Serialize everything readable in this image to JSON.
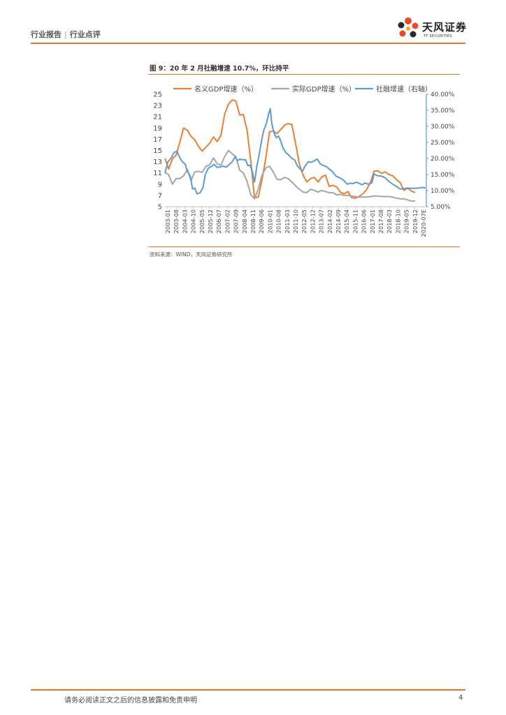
{
  "header": {
    "left_a": "行业报告",
    "sep": "|",
    "left_b": "行业点评",
    "logo_cn": "天风证券",
    "logo_en": "TF SECURITIES"
  },
  "figure": {
    "title": "图 9：20 年 2 月社融增速 10.7%，环比持平",
    "source": "资料来源：WIND，天风证券研究所"
  },
  "footer": {
    "disclaimer": "请务必阅读正文之后的信息披露和免责申明",
    "page": "4"
  },
  "colors": {
    "accent": "#e8742c",
    "nominal": "#ed7d31",
    "real": "#a5a5a5",
    "tsf": "#5b9bd5",
    "axis_right": "#5b9bd5"
  },
  "chart_data": {
    "type": "line",
    "x_tick_labels": [
      "2003-01",
      "2003-08",
      "2004-03",
      "2004-10",
      "2005-05",
      "2005-12",
      "2006-07",
      "2007-02",
      "2007-09",
      "2008-04",
      "2008-11",
      "2009-06",
      "2010-01",
      "2010-08",
      "2011-03",
      "2011-10",
      "2012-05",
      "2012-12",
      "2013-07",
      "2014-02",
      "2014-09",
      "2015-04",
      "2015-11",
      "2016-06",
      "2017-01",
      "2017-08",
      "2018-03",
      "2018-10",
      "2019-05",
      "2019-12",
      "2020-07E"
    ],
    "x_range": [
      2003.0,
      2020.5
    ],
    "y_left": {
      "range": [
        5,
        25
      ],
      "ticks": [
        "5",
        "7",
        "9",
        "11",
        "13",
        "15",
        "17",
        "19",
        "21",
        "23",
        "25"
      ]
    },
    "y_right": {
      "range": [
        5,
        40
      ],
      "ticks": [
        "5.00%",
        "10.00%",
        "15.00%",
        "20.00%",
        "25.00%",
        "30.00%",
        "35.00%",
        "40.00%"
      ]
    },
    "legend_position": "top",
    "series": [
      {
        "name": "名义GDP增速（%）",
        "axis": "left",
        "color": "#ed7d31",
        "points": [
          [
            2003.0,
            13.6
          ],
          [
            2003.25,
            11.7
          ],
          [
            2003.5,
            13.5
          ],
          [
            2003.75,
            14.2
          ],
          [
            2004.0,
            16.5
          ],
          [
            2004.25,
            19.0
          ],
          [
            2004.5,
            18.6
          ],
          [
            2004.75,
            17.5
          ],
          [
            2005.0,
            16.9
          ],
          [
            2005.25,
            15.7
          ],
          [
            2005.5,
            14.9
          ],
          [
            2005.75,
            15.6
          ],
          [
            2006.0,
            16.3
          ],
          [
            2006.25,
            17.4
          ],
          [
            2006.5,
            16.6
          ],
          [
            2006.75,
            17.7
          ],
          [
            2007.0,
            21.5
          ],
          [
            2007.25,
            23.2
          ],
          [
            2007.5,
            24.0
          ],
          [
            2007.75,
            23.8
          ],
          [
            2008.0,
            21.3
          ],
          [
            2008.25,
            21.4
          ],
          [
            2008.5,
            18.6
          ],
          [
            2008.75,
            13.0
          ],
          [
            2009.0,
            6.6
          ],
          [
            2009.25,
            6.7
          ],
          [
            2009.5,
            9.8
          ],
          [
            2009.75,
            13.6
          ],
          [
            2010.0,
            18.3
          ],
          [
            2010.25,
            18.5
          ],
          [
            2010.5,
            18.0
          ],
          [
            2010.75,
            18.7
          ],
          [
            2011.0,
            19.5
          ],
          [
            2011.25,
            19.8
          ],
          [
            2011.5,
            19.6
          ],
          [
            2011.75,
            16.2
          ],
          [
            2012.0,
            12.6
          ],
          [
            2012.25,
            10.6
          ],
          [
            2012.5,
            9.4
          ],
          [
            2012.75,
            10.0
          ],
          [
            2013.0,
            10.2
          ],
          [
            2013.25,
            9.4
          ],
          [
            2013.5,
            10.3
          ],
          [
            2013.75,
            10.6
          ],
          [
            2014.0,
            8.6
          ],
          [
            2014.25,
            8.8
          ],
          [
            2014.5,
            8.5
          ],
          [
            2014.75,
            7.6
          ],
          [
            2015.0,
            7.3
          ],
          [
            2015.25,
            7.7
          ],
          [
            2015.5,
            6.6
          ],
          [
            2015.75,
            6.5
          ],
          [
            2016.0,
            6.8
          ],
          [
            2016.25,
            7.3
          ],
          [
            2016.5,
            8.0
          ],
          [
            2016.75,
            9.3
          ],
          [
            2017.0,
            11.3
          ],
          [
            2017.25,
            11.4
          ],
          [
            2017.5,
            10.9
          ],
          [
            2017.75,
            11.2
          ],
          [
            2018.0,
            10.7
          ],
          [
            2018.25,
            10.5
          ],
          [
            2018.5,
            9.8
          ],
          [
            2018.75,
            9.3
          ],
          [
            2019.0,
            7.9
          ],
          [
            2019.25,
            8.3
          ],
          [
            2019.5,
            7.8
          ],
          [
            2019.75,
            7.5
          ]
        ]
      },
      {
        "name": "实际GDP增速（%）",
        "axis": "left",
        "color": "#a5a5a5",
        "points": [
          [
            2003.0,
            11.1
          ],
          [
            2003.25,
            10.7
          ],
          [
            2003.5,
            9.0
          ],
          [
            2003.75,
            10.0
          ],
          [
            2004.0,
            10.0
          ],
          [
            2004.25,
            10.5
          ],
          [
            2004.5,
            11.6
          ],
          [
            2004.75,
            9.6
          ],
          [
            2005.0,
            11.2
          ],
          [
            2005.25,
            11.3
          ],
          [
            2005.5,
            11.1
          ],
          [
            2005.75,
            12.2
          ],
          [
            2006.0,
            12.4
          ],
          [
            2006.25,
            13.7
          ],
          [
            2006.5,
            12.6
          ],
          [
            2006.75,
            12.4
          ],
          [
            2007.0,
            13.9
          ],
          [
            2007.25,
            15.0
          ],
          [
            2007.5,
            14.4
          ],
          [
            2007.75,
            13.9
          ],
          [
            2008.0,
            11.5
          ],
          [
            2008.25,
            11.0
          ],
          [
            2008.5,
            9.5
          ],
          [
            2008.75,
            7.1
          ],
          [
            2009.0,
            6.4
          ],
          [
            2009.25,
            8.2
          ],
          [
            2009.5,
            10.6
          ],
          [
            2009.75,
            11.9
          ],
          [
            2010.0,
            12.2
          ],
          [
            2010.25,
            11.2
          ],
          [
            2010.5,
            9.9
          ],
          [
            2010.75,
            9.8
          ],
          [
            2011.0,
            10.2
          ],
          [
            2011.25,
            10.0
          ],
          [
            2011.5,
            9.4
          ],
          [
            2011.75,
            8.7
          ],
          [
            2012.0,
            8.1
          ],
          [
            2012.25,
            7.6
          ],
          [
            2012.5,
            7.5
          ],
          [
            2012.75,
            8.1
          ],
          [
            2013.0,
            7.9
          ],
          [
            2013.25,
            7.6
          ],
          [
            2013.5,
            7.9
          ],
          [
            2013.75,
            7.7
          ],
          [
            2014.0,
            7.5
          ],
          [
            2014.25,
            7.5
          ],
          [
            2014.5,
            7.1
          ],
          [
            2014.75,
            7.2
          ],
          [
            2015.0,
            7.0
          ],
          [
            2015.25,
            7.0
          ],
          [
            2015.5,
            6.9
          ],
          [
            2015.75,
            6.8
          ],
          [
            2016.0,
            6.7
          ],
          [
            2016.25,
            6.7
          ],
          [
            2016.5,
            6.7
          ],
          [
            2016.75,
            6.8
          ],
          [
            2017.0,
            6.9
          ],
          [
            2017.25,
            6.9
          ],
          [
            2017.5,
            6.8
          ],
          [
            2017.75,
            6.8
          ],
          [
            2018.0,
            6.8
          ],
          [
            2018.25,
            6.7
          ],
          [
            2018.5,
            6.5
          ],
          [
            2018.75,
            6.4
          ],
          [
            2019.0,
            6.4
          ],
          [
            2019.25,
            6.2
          ],
          [
            2019.5,
            6.0
          ],
          [
            2019.75,
            6.0
          ]
        ]
      },
      {
        "name": "社融增速（右轴）",
        "axis": "right",
        "color": "#5b9bd5",
        "points": [
          [
            2003.0,
            15.5
          ],
          [
            2003.2,
            19.0
          ],
          [
            2003.4,
            20.0
          ],
          [
            2003.6,
            21.8
          ],
          [
            2003.8,
            22.3
          ],
          [
            2004.0,
            20.2
          ],
          [
            2004.2,
            18.8
          ],
          [
            2004.35,
            18.3
          ],
          [
            2004.5,
            16.0
          ],
          [
            2004.7,
            14.5
          ],
          [
            2004.85,
            10.5
          ],
          [
            2005.0,
            10.8
          ],
          [
            2005.15,
            9.0
          ],
          [
            2005.35,
            9.3
          ],
          [
            2005.55,
            11.0
          ],
          [
            2005.7,
            15.0
          ],
          [
            2005.9,
            17.0
          ],
          [
            2006.1,
            17.5
          ],
          [
            2006.3,
            18.2
          ],
          [
            2006.5,
            17.2
          ],
          [
            2006.7,
            17.4
          ],
          [
            2006.9,
            17.6
          ],
          [
            2007.1,
            17.3
          ],
          [
            2007.3,
            18.1
          ],
          [
            2007.5,
            19.0
          ],
          [
            2007.7,
            20.5
          ],
          [
            2007.85,
            19.3
          ],
          [
            2008.0,
            19.8
          ],
          [
            2008.2,
            19.6
          ],
          [
            2008.4,
            19.6
          ],
          [
            2008.55,
            17.8
          ],
          [
            2008.7,
            17.9
          ],
          [
            2008.85,
            16.0
          ],
          [
            2009.0,
            12.7
          ],
          [
            2009.15,
            17.4
          ],
          [
            2009.3,
            21.0
          ],
          [
            2009.45,
            25.0
          ],
          [
            2009.6,
            28.6
          ],
          [
            2009.8,
            31.0
          ],
          [
            2009.95,
            34.0
          ],
          [
            2010.05,
            35.5
          ],
          [
            2010.15,
            31.0
          ],
          [
            2010.3,
            28.0
          ],
          [
            2010.45,
            26.5
          ],
          [
            2010.6,
            27.0
          ],
          [
            2010.75,
            25.5
          ],
          [
            2010.9,
            23.4
          ],
          [
            2011.1,
            21.8
          ],
          [
            2011.3,
            21.0
          ],
          [
            2011.5,
            20.0
          ],
          [
            2011.7,
            19.5
          ],
          [
            2011.85,
            17.8
          ],
          [
            2012.0,
            17.0
          ],
          [
            2012.2,
            16.0
          ],
          [
            2012.4,
            17.8
          ],
          [
            2012.6,
            19.0
          ],
          [
            2012.8,
            18.8
          ],
          [
            2013.0,
            19.3
          ],
          [
            2013.2,
            19.8
          ],
          [
            2013.4,
            18.3
          ],
          [
            2013.6,
            17.8
          ],
          [
            2013.8,
            17.5
          ],
          [
            2014.0,
            16.7
          ],
          [
            2014.2,
            16.0
          ],
          [
            2014.45,
            14.5
          ],
          [
            2014.7,
            14.0
          ],
          [
            2014.95,
            13.3
          ],
          [
            2015.2,
            12.0
          ],
          [
            2015.4,
            12.3
          ],
          [
            2015.6,
            12.2
          ],
          [
            2015.8,
            12.6
          ],
          [
            2016.0,
            12.3
          ],
          [
            2016.2,
            11.8
          ],
          [
            2016.4,
            12.4
          ],
          [
            2016.6,
            12.0
          ],
          [
            2016.85,
            12.4
          ],
          [
            2017.0,
            15.2
          ],
          [
            2017.25,
            14.6
          ],
          [
            2017.5,
            14.5
          ],
          [
            2017.75,
            14.0
          ],
          [
            2018.0,
            12.8
          ],
          [
            2018.25,
            12.0
          ],
          [
            2018.5,
            11.3
          ],
          [
            2018.75,
            10.5
          ],
          [
            2019.0,
            10.6
          ],
          [
            2019.25,
            10.8
          ],
          [
            2019.5,
            10.7
          ],
          [
            2019.75,
            10.7
          ],
          [
            2020.0,
            10.8
          ],
          [
            2020.25,
            11.0
          ],
          [
            2020.45,
            10.8
          ]
        ]
      }
    ]
  }
}
